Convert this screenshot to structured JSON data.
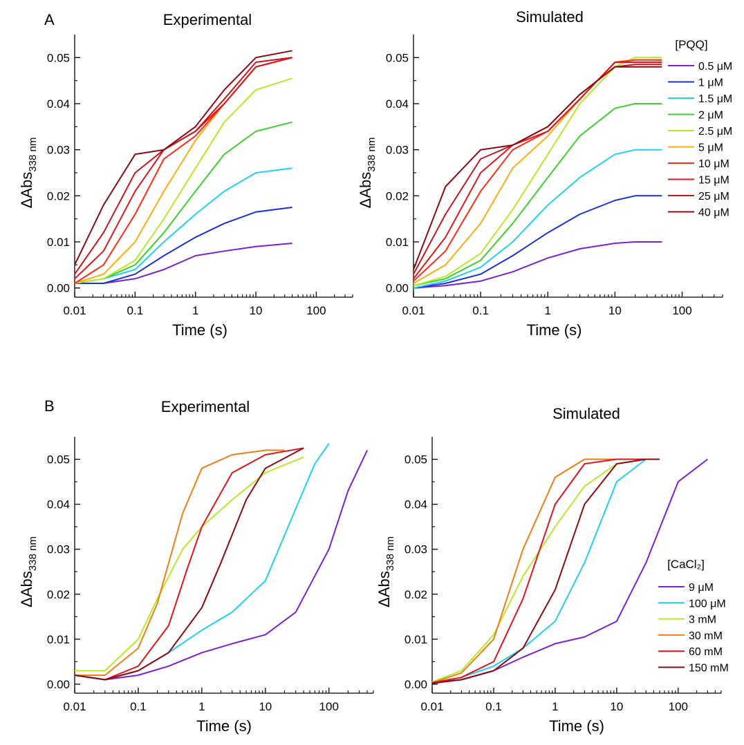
{
  "figure": {
    "panel_labels": [
      "A",
      "B"
    ]
  },
  "colors": {
    "axis": "#000000",
    "v500": "#7a1fd6",
    "blue": "#1a2fe0",
    "cyan": "#1fd0f2",
    "green": "#3ad12b",
    "ygreen": "#b6ea27",
    "orange": "#ffac12",
    "orange2": "#f07d12",
    "red1": "#ff2a14",
    "red2": "#e0141c",
    "red3": "#c8141c",
    "darkred": "#8a0a12"
  },
  "chart_data": [
    {
      "id": "A-experimental",
      "type": "line",
      "title": "Experimental",
      "xlabel": "Time (s)",
      "ylabel": "ΔAbs",
      "ylabel_sub": "338 nm",
      "xscale": "log",
      "xlim": [
        0.01,
        400
      ],
      "ylim": [
        -0.002,
        0.055
      ],
      "xticks": [
        0.01,
        0.1,
        1,
        10,
        100
      ],
      "xtick_labels": [
        "0.01",
        "0.1",
        "1",
        "10",
        "100"
      ],
      "yticks": [
        0.0,
        0.01,
        0.02,
        0.03,
        0.04,
        0.05
      ],
      "ytick_labels": [
        "0.00",
        "0.01",
        "0.02",
        "0.03",
        "0.04",
        "0.05"
      ],
      "series": [
        {
          "name": "0.5 μM",
          "color": "#7a1fd6",
          "x": [
            0.01,
            0.03,
            0.1,
            0.3,
            1,
            3,
            10,
            40
          ],
          "y": [
            0.001,
            0.001,
            0.002,
            0.004,
            0.007,
            0.008,
            0.009,
            0.0097
          ]
        },
        {
          "name": "1 μM",
          "color": "#1a2fe0",
          "x": [
            0.01,
            0.03,
            0.1,
            0.3,
            1,
            3,
            10,
            40
          ],
          "y": [
            0.001,
            0.001,
            0.003,
            0.007,
            0.011,
            0.014,
            0.0165,
            0.0175
          ]
        },
        {
          "name": "1.5 μM",
          "color": "#1fd0f2",
          "x": [
            0.01,
            0.03,
            0.1,
            0.3,
            1,
            3,
            10,
            40
          ],
          "y": [
            0.001,
            0.002,
            0.004,
            0.01,
            0.016,
            0.021,
            0.025,
            0.026
          ]
        },
        {
          "name": "2 μM",
          "color": "#3ad12b",
          "x": [
            0.01,
            0.03,
            0.1,
            0.3,
            1,
            3,
            10,
            40
          ],
          "y": [
            0.001,
            0.002,
            0.005,
            0.012,
            0.021,
            0.029,
            0.034,
            0.036
          ]
        },
        {
          "name": "2.5 μM",
          "color": "#b6ea27",
          "x": [
            0.01,
            0.03,
            0.1,
            0.3,
            1,
            3,
            10,
            40
          ],
          "y": [
            0.001,
            0.002,
            0.006,
            0.015,
            0.026,
            0.036,
            0.043,
            0.0455
          ]
        },
        {
          "name": "5 μM",
          "color": "#ffac12",
          "x": [
            0.01,
            0.03,
            0.1,
            0.3,
            1,
            3,
            10,
            40
          ],
          "y": [
            0.001,
            0.003,
            0.01,
            0.021,
            0.032,
            0.04,
            0.048,
            0.05
          ]
        },
        {
          "name": "10 μM",
          "color": "#ff2a14",
          "x": [
            0.01,
            0.03,
            0.1,
            0.3,
            1,
            3,
            10,
            40
          ],
          "y": [
            0.001,
            0.005,
            0.016,
            0.028,
            0.033,
            0.04,
            0.048,
            0.05
          ]
        },
        {
          "name": "15 μM",
          "color": "#e0141c",
          "x": [
            0.01,
            0.03,
            0.1,
            0.3,
            1,
            3,
            10,
            40
          ],
          "y": [
            0.002,
            0.008,
            0.021,
            0.03,
            0.034,
            0.04,
            0.048,
            0.05
          ]
        },
        {
          "name": "25 μM",
          "color": "#c8141c",
          "x": [
            0.01,
            0.03,
            0.1,
            0.3,
            1,
            3,
            10,
            40
          ],
          "y": [
            0.003,
            0.012,
            0.025,
            0.03,
            0.034,
            0.041,
            0.049,
            0.05
          ]
        },
        {
          "name": "40 μM",
          "color": "#8a0a12",
          "x": [
            0.01,
            0.03,
            0.1,
            0.3,
            1,
            3,
            10,
            40
          ],
          "y": [
            0.005,
            0.018,
            0.029,
            0.03,
            0.035,
            0.043,
            0.05,
            0.0515
          ]
        }
      ]
    },
    {
      "id": "A-simulated",
      "type": "line",
      "title": "Simulated",
      "xlabel": "Time (s)",
      "ylabel": "ΔAbs",
      "ylabel_sub": "338 nm",
      "xscale": "log",
      "xlim": [
        0.01,
        400
      ],
      "ylim": [
        -0.002,
        0.055
      ],
      "xticks": [
        0.01,
        0.1,
        1,
        10,
        100
      ],
      "xtick_labels": [
        "0.01",
        "0.1",
        "1",
        "10",
        "100"
      ],
      "yticks": [
        0.0,
        0.01,
        0.02,
        0.03,
        0.04,
        0.05
      ],
      "ytick_labels": [
        "0.00",
        "0.01",
        "0.02",
        "0.03",
        "0.04",
        "0.05"
      ],
      "legend": {
        "title": "[PQQ]",
        "placement": "right"
      },
      "series": [
        {
          "name": "0.5 μM",
          "color": "#7a1fd6",
          "x": [
            0.01,
            0.03,
            0.1,
            0.3,
            1,
            3,
            10,
            20,
            50
          ],
          "y": [
            0.0,
            0.0005,
            0.0015,
            0.0035,
            0.0065,
            0.0085,
            0.0097,
            0.01,
            0.01
          ]
        },
        {
          "name": "1 μM",
          "color": "#1a2fe0",
          "x": [
            0.01,
            0.03,
            0.1,
            0.3,
            1,
            3,
            10,
            20,
            50
          ],
          "y": [
            0.0,
            0.001,
            0.003,
            0.007,
            0.012,
            0.016,
            0.019,
            0.02,
            0.02
          ]
        },
        {
          "name": "1.5 μM",
          "color": "#1fd0f2",
          "x": [
            0.01,
            0.03,
            0.1,
            0.3,
            1,
            3,
            10,
            20,
            50
          ],
          "y": [
            0.0,
            0.0015,
            0.0045,
            0.01,
            0.018,
            0.024,
            0.029,
            0.03,
            0.03
          ]
        },
        {
          "name": "2 μM",
          "color": "#3ad12b",
          "x": [
            0.01,
            0.03,
            0.1,
            0.3,
            1,
            3,
            10,
            20,
            50
          ],
          "y": [
            0.0005,
            0.002,
            0.006,
            0.014,
            0.024,
            0.033,
            0.039,
            0.04,
            0.04
          ]
        },
        {
          "name": "2.5 μM",
          "color": "#b6ea27",
          "x": [
            0.01,
            0.03,
            0.1,
            0.3,
            1,
            3,
            10,
            20,
            50
          ],
          "y": [
            0.0005,
            0.0025,
            0.0075,
            0.017,
            0.029,
            0.04,
            0.048,
            0.05,
            0.05
          ]
        },
        {
          "name": "5 μM",
          "color": "#ffac12",
          "x": [
            0.01,
            0.03,
            0.1,
            0.3,
            1,
            3,
            10,
            20,
            50
          ],
          "y": [
            0.001,
            0.005,
            0.014,
            0.026,
            0.033,
            0.041,
            0.049,
            0.0495,
            0.0495
          ]
        },
        {
          "name": "10 μM",
          "color": "#ff2a14",
          "x": [
            0.01,
            0.03,
            0.1,
            0.3,
            1,
            3,
            10,
            20,
            50
          ],
          "y": [
            0.0015,
            0.008,
            0.021,
            0.03,
            0.034,
            0.041,
            0.049,
            0.0495,
            0.0495
          ]
        },
        {
          "name": "15 μM",
          "color": "#e0141c",
          "x": [
            0.01,
            0.03,
            0.1,
            0.3,
            1,
            3,
            10,
            20,
            50
          ],
          "y": [
            0.002,
            0.011,
            0.025,
            0.031,
            0.034,
            0.041,
            0.049,
            0.049,
            0.049
          ]
        },
        {
          "name": "25 μM",
          "color": "#c8141c",
          "x": [
            0.01,
            0.03,
            0.1,
            0.3,
            1,
            3,
            10,
            20,
            50
          ],
          "y": [
            0.003,
            0.016,
            0.028,
            0.031,
            0.035,
            0.042,
            0.048,
            0.0485,
            0.0485
          ]
        },
        {
          "name": "40 μM",
          "color": "#8a0a12",
          "x": [
            0.01,
            0.03,
            0.1,
            0.3,
            1,
            3,
            10,
            20,
            50
          ],
          "y": [
            0.004,
            0.022,
            0.03,
            0.031,
            0.035,
            0.042,
            0.048,
            0.048,
            0.048
          ]
        }
      ]
    },
    {
      "id": "B-experimental",
      "type": "line",
      "title": "Experimental",
      "xlabel": "Time (s)",
      "ylabel": "ΔAbs",
      "ylabel_sub": "338 nm",
      "xscale": "log",
      "xlim": [
        0.01,
        500
      ],
      "ylim": [
        -0.002,
        0.055
      ],
      "xticks": [
        0.01,
        0.1,
        1,
        10,
        100
      ],
      "xtick_labels": [
        "0.01",
        "0.1",
        "1",
        "10",
        "100"
      ],
      "yticks": [
        0.0,
        0.01,
        0.02,
        0.03,
        0.04,
        0.05
      ],
      "ytick_labels": [
        "0.00",
        "0.01",
        "0.02",
        "0.03",
        "0.04",
        "0.05"
      ],
      "series": [
        {
          "name": "9 μM",
          "color": "#7a1fd6",
          "x": [
            0.01,
            0.03,
            0.1,
            0.3,
            1,
            3,
            10,
            30,
            100,
            200,
            400
          ],
          "y": [
            0.002,
            0.001,
            0.002,
            0.004,
            0.007,
            0.009,
            0.011,
            0.016,
            0.03,
            0.043,
            0.052
          ]
        },
        {
          "name": "100 μM",
          "color": "#1fd0f2",
          "x": [
            0.01,
            0.03,
            0.1,
            0.3,
            1,
            3,
            10,
            30,
            60,
            100
          ],
          "y": [
            0.002,
            0.001,
            0.003,
            0.007,
            0.012,
            0.016,
            0.023,
            0.039,
            0.049,
            0.0535
          ]
        },
        {
          "name": "3 mM",
          "color": "#b6ea27",
          "x": [
            0.01,
            0.03,
            0.1,
            0.2,
            0.5,
            1,
            3,
            10,
            40
          ],
          "y": [
            0.003,
            0.003,
            0.01,
            0.019,
            0.03,
            0.035,
            0.041,
            0.047,
            0.0505
          ]
        },
        {
          "name": "30 mM",
          "color": "#f07d12",
          "x": [
            0.01,
            0.03,
            0.1,
            0.2,
            0.5,
            1,
            3,
            10,
            20
          ],
          "y": [
            0.002,
            0.002,
            0.008,
            0.018,
            0.038,
            0.048,
            0.051,
            0.052,
            0.052
          ]
        },
        {
          "name": "60 mM",
          "color": "#e0141c",
          "x": [
            0.01,
            0.03,
            0.1,
            0.3,
            0.6,
            1,
            3,
            10,
            40
          ],
          "y": [
            0.002,
            0.001,
            0.004,
            0.013,
            0.026,
            0.035,
            0.047,
            0.051,
            0.0525
          ]
        },
        {
          "name": "150 mM",
          "color": "#8a0a12",
          "x": [
            0.01,
            0.03,
            0.1,
            0.3,
            1,
            2,
            5,
            10,
            40
          ],
          "y": [
            0.002,
            0.001,
            0.003,
            0.007,
            0.017,
            0.027,
            0.041,
            0.048,
            0.0525
          ]
        }
      ]
    },
    {
      "id": "B-simulated",
      "type": "line",
      "title": "Simulated",
      "xlabel": "Time (s)",
      "ylabel": "ΔAbs",
      "ylabel_sub": "338 nm",
      "xscale": "log",
      "xlim": [
        0.01,
        500
      ],
      "ylim": [
        -0.002,
        0.055
      ],
      "xticks": [
        0.01,
        0.1,
        1,
        10,
        100
      ],
      "xtick_labels": [
        "0.01",
        "0.1",
        "1",
        "10",
        "100"
      ],
      "yticks": [
        0.0,
        0.01,
        0.02,
        0.03,
        0.04,
        0.05
      ],
      "ytick_labels": [
        "0.00",
        "0.01",
        "0.02",
        "0.03",
        "0.04",
        "0.05"
      ],
      "legend": {
        "title": "[CaCl₂]",
        "placement": "bottom-right"
      },
      "series": [
        {
          "name": "9 μM",
          "color": "#7a1fd6",
          "x": [
            0.01,
            0.03,
            0.1,
            0.3,
            1,
            3,
            10,
            30,
            100,
            300
          ],
          "y": [
            0.0003,
            0.001,
            0.003,
            0.006,
            0.009,
            0.0105,
            0.014,
            0.027,
            0.045,
            0.05
          ]
        },
        {
          "name": "100 μM",
          "color": "#1fd0f2",
          "x": [
            0.01,
            0.03,
            0.1,
            0.3,
            1,
            3,
            10,
            30,
            50
          ],
          "y": [
            0.0003,
            0.0015,
            0.004,
            0.008,
            0.014,
            0.027,
            0.045,
            0.05,
            0.05
          ]
        },
        {
          "name": "3 mM",
          "color": "#b6ea27",
          "x": [
            0.01,
            0.03,
            0.1,
            0.3,
            1,
            3,
            10,
            30,
            50
          ],
          "y": [
            0.0005,
            0.003,
            0.011,
            0.024,
            0.035,
            0.044,
            0.049,
            0.05,
            0.05
          ]
        },
        {
          "name": "30 mM",
          "color": "#f07d12",
          "x": [
            0.01,
            0.03,
            0.1,
            0.3,
            1,
            3,
            10,
            30,
            50
          ],
          "y": [
            0.0003,
            0.0025,
            0.01,
            0.03,
            0.046,
            0.05,
            0.05,
            0.05,
            0.05
          ]
        },
        {
          "name": "60 mM",
          "color": "#e0141c",
          "x": [
            0.01,
            0.03,
            0.1,
            0.3,
            1,
            3,
            10,
            30,
            50
          ],
          "y": [
            0.0003,
            0.0015,
            0.005,
            0.019,
            0.04,
            0.049,
            0.05,
            0.05,
            0.05
          ]
        },
        {
          "name": "150 mM",
          "color": "#8a0a12",
          "x": [
            0.01,
            0.03,
            0.1,
            0.3,
            1,
            3,
            10,
            30,
            50
          ],
          "y": [
            0.0002,
            0.001,
            0.003,
            0.008,
            0.021,
            0.04,
            0.049,
            0.05,
            0.05
          ]
        }
      ]
    }
  ]
}
